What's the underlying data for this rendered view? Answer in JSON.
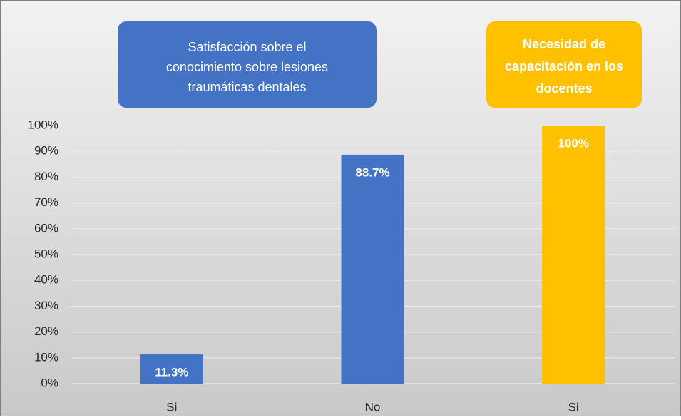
{
  "chart_data": {
    "type": "bar",
    "categories": [
      "Si",
      "No",
      "Si"
    ],
    "values": [
      11.3,
      88.7,
      100
    ],
    "value_labels": [
      "11.3%",
      "88.7%",
      "100%"
    ],
    "colors": [
      "#4472c4",
      "#4472c4",
      "#ffc000"
    ],
    "ylim": [
      0,
      100
    ],
    "yticks": [
      {
        "value": 0,
        "label": "0%"
      },
      {
        "value": 10,
        "label": "10%"
      },
      {
        "value": 20,
        "label": "20%"
      },
      {
        "value": 30,
        "label": "30%"
      },
      {
        "value": 40,
        "label": "40%"
      },
      {
        "value": 50,
        "label": "50%"
      },
      {
        "value": 60,
        "label": "60%"
      },
      {
        "value": 70,
        "label": "70%"
      },
      {
        "value": 80,
        "label": "80%"
      },
      {
        "value": 90,
        "label": "90%"
      },
      {
        "value": 100,
        "label": "100%"
      }
    ],
    "grid": true,
    "annotations": [
      {
        "lines": [
          "Satisfacción sobre el",
          "conocimiento sobre lesiones",
          "traumáticas dentales"
        ],
        "color": "#4472c4",
        "bold": false
      },
      {
        "lines": [
          "Necesidad de",
          "capacitación en los",
          "docentes"
        ],
        "color": "#ffc000",
        "bold": true
      }
    ]
  }
}
